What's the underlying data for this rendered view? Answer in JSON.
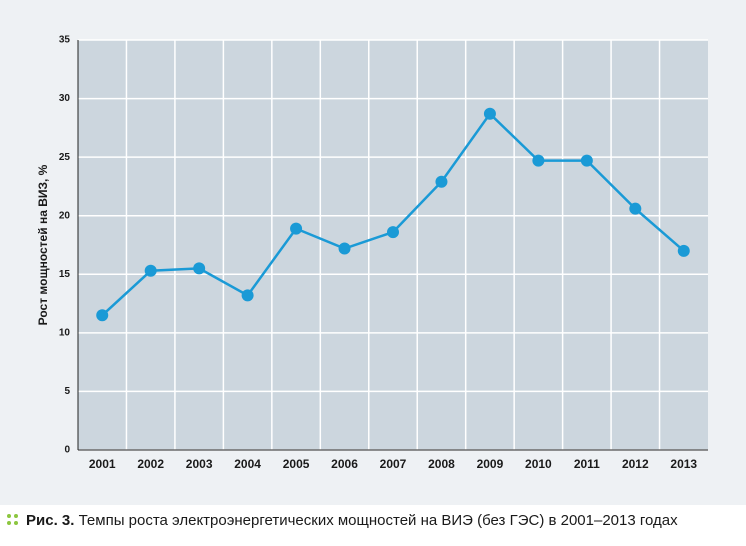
{
  "chart_data": {
    "type": "line",
    "categories": [
      "2001",
      "2002",
      "2003",
      "2004",
      "2005",
      "2006",
      "2007",
      "2008",
      "2009",
      "2010",
      "2011",
      "2012",
      "2013"
    ],
    "series": [
      {
        "color": "#1a9ad6",
        "values": [
          11.5,
          15.3,
          15.5,
          13.2,
          18.9,
          17.2,
          18.6,
          22.9,
          28.7,
          24.7,
          24.7,
          20.6,
          17.0
        ]
      }
    ],
    "ylabel": "Рост мощностей на ВИЗ, %",
    "ylim": [
      0,
      35
    ],
    "yticks": [
      0,
      5,
      10,
      15,
      20,
      25,
      30,
      35
    ],
    "grid": true,
    "caption_label": "Рис. 3.",
    "caption": "Темпы роста электроэнергетических мощностей на ВИЭ (без ГЭС) в 2001–2013 годах"
  }
}
